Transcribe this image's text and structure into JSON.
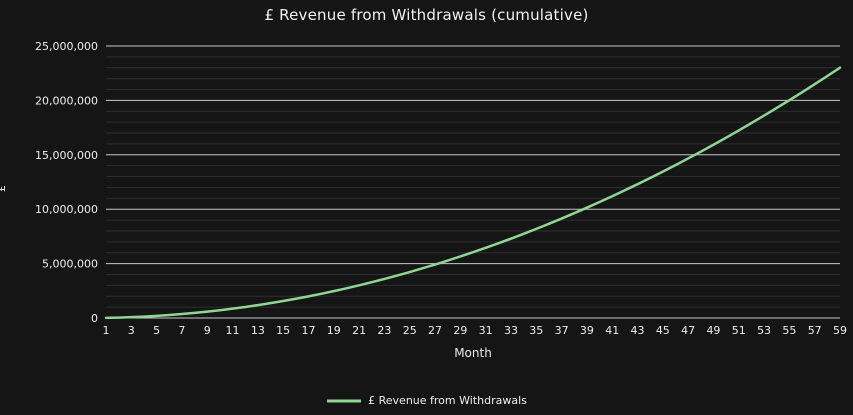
{
  "colors": {
    "background": "#151515",
    "line": "#8fd694",
    "major_grid": "#c9c9c9",
    "minor_grid": "#2e2e2e",
    "tick_text": "#ededed"
  },
  "legend": {
    "label": "£ Revenue from Withdrawals"
  },
  "chart_data": {
    "type": "line",
    "title": "£ Revenue from Withdrawals (cumulative)",
    "xlabel": "Month",
    "ylabel": "£",
    "ylim": [
      0,
      25000000
    ],
    "y_tick_interval": 5000000,
    "y_minor_interval": 1000000,
    "grid": "horizontal",
    "legend_position": "bottom",
    "xticks": [
      1,
      3,
      5,
      7,
      9,
      11,
      13,
      15,
      17,
      19,
      21,
      23,
      25,
      27,
      29,
      31,
      33,
      35,
      37,
      39,
      41,
      43,
      45,
      47,
      49,
      51,
      53,
      55,
      57,
      59
    ],
    "x": [
      1,
      2,
      3,
      4,
      5,
      6,
      7,
      8,
      9,
      10,
      11,
      12,
      13,
      14,
      15,
      16,
      17,
      18,
      19,
      20,
      21,
      22,
      23,
      24,
      25,
      26,
      27,
      28,
      29,
      30,
      31,
      32,
      33,
      34,
      35,
      36,
      37,
      38,
      39,
      40,
      41,
      42,
      43,
      44,
      45,
      46,
      47,
      48,
      49,
      50,
      51,
      52,
      53,
      54,
      55,
      56,
      57,
      58,
      59
    ],
    "series": [
      {
        "name": "£ Revenue from Withdrawals",
        "values": [
          13000,
          39000,
          78000,
          130000,
          195000,
          273000,
          364000,
          468000,
          585000,
          715000,
          858000,
          1014000,
          1183000,
          1365000,
          1560000,
          1768000,
          1989000,
          2223000,
          2470000,
          2730000,
          3003000,
          3289000,
          3588000,
          3900000,
          4225000,
          4563000,
          4914000,
          5278000,
          5655000,
          6045000,
          6448000,
          6864000,
          7293000,
          7735000,
          8190000,
          8658000,
          9139000,
          9633000,
          10140000,
          10660000,
          11193000,
          11739000,
          12298000,
          12870000,
          13455000,
          14053000,
          14664000,
          15288000,
          15925000,
          16575000,
          17238000,
          17914000,
          18603000,
          19305000,
          20020000,
          20748000,
          21489000,
          22243000,
          23010000
        ]
      }
    ]
  }
}
